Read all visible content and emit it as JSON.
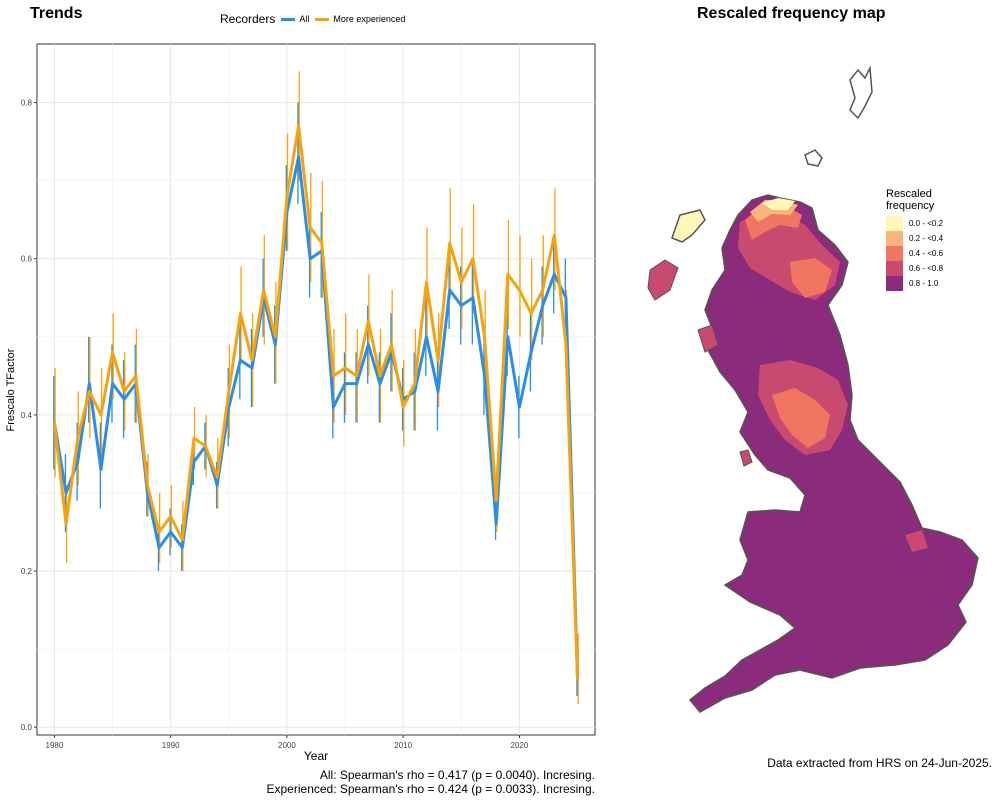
{
  "titles": {
    "trends": "Trends",
    "map": "Rescaled frequency map"
  },
  "legend": {
    "title": "Recorders",
    "items": [
      {
        "label": "All",
        "color": "#2b8de4"
      },
      {
        "label": "More experienced",
        "color": "#f5a30f"
      }
    ]
  },
  "chart_data": {
    "type": "line",
    "xlabel": "Year",
    "ylabel": "Frescalo TFactor",
    "xlim": [
      1978.5,
      2026.5
    ],
    "ylim": [
      -0.01,
      0.875
    ],
    "x_ticks": [
      1980,
      1990,
      2000,
      2010,
      2020
    ],
    "y_ticks": [
      0.0,
      0.2,
      0.4,
      0.6,
      0.8
    ],
    "grid": true,
    "legend_position": "top",
    "x": [
      1980,
      1981,
      1982,
      1983,
      1984,
      1985,
      1986,
      1987,
      1988,
      1989,
      1990,
      1991,
      1992,
      1993,
      1994,
      1995,
      1996,
      1997,
      1998,
      1999,
      2000,
      2001,
      2002,
      2003,
      2004,
      2005,
      2006,
      2007,
      2008,
      2009,
      2010,
      2011,
      2012,
      2013,
      2014,
      2015,
      2016,
      2017,
      2018,
      2019,
      2020,
      2021,
      2022,
      2023,
      2024,
      2025
    ],
    "series": [
      {
        "name": "All",
        "color": "#2b8de4",
        "values": [
          0.39,
          0.3,
          0.34,
          0.44,
          0.33,
          0.44,
          0.42,
          0.44,
          0.3,
          0.23,
          0.25,
          0.23,
          0.34,
          0.36,
          0.31,
          0.41,
          0.47,
          0.46,
          0.55,
          0.49,
          0.66,
          0.73,
          0.6,
          0.61,
          0.41,
          0.44,
          0.44,
          0.49,
          0.44,
          0.48,
          0.42,
          0.43,
          0.5,
          0.43,
          0.56,
          0.54,
          0.55,
          0.45,
          0.26,
          0.5,
          0.41,
          0.48,
          0.54,
          0.58,
          0.55,
          0.06
        ],
        "lower": [
          0.33,
          0.25,
          0.29,
          0.39,
          0.28,
          0.39,
          0.37,
          0.39,
          0.27,
          0.2,
          0.22,
          0.2,
          0.31,
          0.33,
          0.28,
          0.36,
          0.42,
          0.41,
          0.5,
          0.44,
          0.61,
          0.67,
          0.55,
          0.55,
          0.37,
          0.39,
          0.39,
          0.44,
          0.39,
          0.43,
          0.38,
          0.38,
          0.45,
          0.38,
          0.51,
          0.49,
          0.49,
          0.4,
          0.24,
          0.45,
          0.37,
          0.43,
          0.49,
          0.53,
          0.5,
          0.04
        ],
        "upper": [
          0.45,
          0.35,
          0.39,
          0.5,
          0.39,
          0.49,
          0.47,
          0.49,
          0.34,
          0.26,
          0.28,
          0.26,
          0.37,
          0.39,
          0.34,
          0.46,
          0.52,
          0.51,
          0.6,
          0.54,
          0.72,
          0.8,
          0.66,
          0.66,
          0.45,
          0.48,
          0.48,
          0.54,
          0.48,
          0.53,
          0.46,
          0.48,
          0.55,
          0.48,
          0.61,
          0.59,
          0.6,
          0.5,
          0.29,
          0.55,
          0.45,
          0.53,
          0.59,
          0.63,
          0.6,
          0.08
        ]
      },
      {
        "name": "More experienced",
        "color": "#f5a30f",
        "values": [
          0.39,
          0.26,
          0.37,
          0.43,
          0.4,
          0.48,
          0.43,
          0.45,
          0.31,
          0.25,
          0.27,
          0.24,
          0.37,
          0.36,
          0.32,
          0.43,
          0.53,
          0.47,
          0.56,
          0.5,
          0.68,
          0.77,
          0.64,
          0.62,
          0.45,
          0.46,
          0.45,
          0.52,
          0.45,
          0.49,
          0.41,
          0.44,
          0.57,
          0.47,
          0.62,
          0.57,
          0.6,
          0.5,
          0.29,
          0.58,
          0.56,
          0.53,
          0.56,
          0.63,
          0.49,
          0.06
        ],
        "lower": [
          0.32,
          0.21,
          0.31,
          0.37,
          0.34,
          0.42,
          0.38,
          0.39,
          0.27,
          0.21,
          0.23,
          0.2,
          0.33,
          0.32,
          0.28,
          0.37,
          0.47,
          0.41,
          0.49,
          0.44,
          0.61,
          0.7,
          0.57,
          0.55,
          0.39,
          0.4,
          0.39,
          0.45,
          0.39,
          0.43,
          0.36,
          0.38,
          0.5,
          0.41,
          0.55,
          0.51,
          0.53,
          0.44,
          0.25,
          0.51,
          0.5,
          0.47,
          0.5,
          0.56,
          0.43,
          0.03
        ],
        "upper": [
          0.46,
          0.31,
          0.43,
          0.5,
          0.46,
          0.53,
          0.48,
          0.51,
          0.35,
          0.3,
          0.31,
          0.29,
          0.41,
          0.4,
          0.37,
          0.49,
          0.59,
          0.53,
          0.63,
          0.57,
          0.76,
          0.84,
          0.71,
          0.7,
          0.51,
          0.53,
          0.51,
          0.58,
          0.51,
          0.56,
          0.47,
          0.51,
          0.64,
          0.53,
          0.69,
          0.64,
          0.67,
          0.56,
          0.33,
          0.65,
          0.63,
          0.6,
          0.63,
          0.69,
          0.56,
          0.12
        ]
      }
    ]
  },
  "map_legend": {
    "title_line1": "Rescaled",
    "title_line2": "frequency",
    "items": [
      {
        "label": "0.0 - <0.2",
        "color": "#fdf7b8"
      },
      {
        "label": "0.2 - <0.4",
        "color": "#fbb47e"
      },
      {
        "label": "0.4 - <0.6",
        "color": "#f17560"
      },
      {
        "label": "0.6 - <0.8",
        "color": "#c94a71"
      },
      {
        "label": "0.8 - 1.0",
        "color": "#8b2b7b"
      }
    ]
  },
  "stats": {
    "all": "All: Spearman's rho = 0.417 (p = 0.0040). Incresing.",
    "experienced": "Experienced: Spearman's rho = 0.424 (p = 0.0033). Incresing."
  },
  "source_note": "Data extracted from HRS on 24-Jun-2025."
}
